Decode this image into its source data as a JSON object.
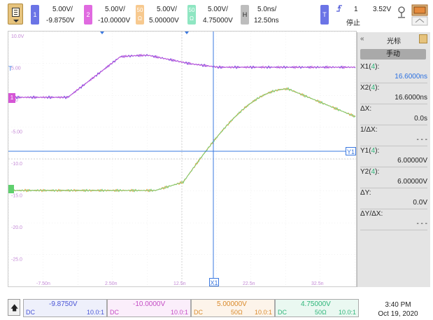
{
  "channels": [
    {
      "badge": "1",
      "scale": "5.00V/",
      "offset": "-9.8750V",
      "color": "#6b74e6"
    },
    {
      "badge": "2",
      "scale": "5.00V/",
      "offset": "-10.0000V",
      "color": "#e06ae0"
    },
    {
      "badge": "50\nΩ",
      "scale": "5.00V/",
      "offset": "5.00000V",
      "color": "#f2a657"
    },
    {
      "badge": "50\nΩ",
      "scale": "5.00V/",
      "offset": "4.75000V",
      "color": "#59d7a2"
    }
  ],
  "timebase": {
    "badge": "H",
    "scale": "5.0ns/",
    "delay": "12.50ns"
  },
  "trigger": {
    "badge": "T",
    "edge_icon": "rising-edge-icon",
    "source": "1",
    "level": "3.52V",
    "status": "停止"
  },
  "waveform": {
    "y_labels": [
      "10.0V",
      "5.00",
      "0.0",
      "-5.00",
      "-10.0",
      "-15.0",
      "-20.0",
      "-25.0"
    ],
    "x_labels": [
      "-7.50n",
      "2.50n",
      "12.5n",
      "22.5n",
      "32.5n"
    ],
    "y1_marker": "Y1",
    "x1_marker": "X1",
    "left_markers": [
      "T",
      "1",
      "2"
    ]
  },
  "cursor_panel": {
    "title": "光标",
    "mode": "手动",
    "rows": [
      {
        "label": "X1(",
        "src": "4",
        "tail": "):",
        "value": "16.6000ns",
        "value_color": "#2a6fe0"
      },
      {
        "label": "X2(",
        "src": "4",
        "tail": "):",
        "value": "16.6000ns",
        "value_color": "#222"
      },
      {
        "label": "ΔX:",
        "src": "",
        "tail": "",
        "value": "0.0s",
        "value_color": "#222"
      },
      {
        "label": "1/ΔX:",
        "src": "",
        "tail": "",
        "value": "- - -",
        "value_color": "#222"
      },
      {
        "label": "Y1(",
        "src": "4",
        "tail": "):",
        "value": "6.00000V",
        "value_color": "#222"
      },
      {
        "label": "Y2(",
        "src": "4",
        "tail": "):",
        "value": "6.00000V",
        "value_color": "#222"
      },
      {
        "label": "ΔY:",
        "src": "",
        "tail": "",
        "value": "0.0V",
        "value_color": "#222"
      },
      {
        "label": "ΔY/ΔX:",
        "src": "",
        "tail": "",
        "value": "- - -",
        "value_color": "#222"
      }
    ]
  },
  "bottom": {
    "cells": [
      {
        "value": "-9.8750V",
        "coupling": "DC",
        "ohm": "",
        "probe": "10.0:1",
        "color": "#4a55d6",
        "bg": "#eef0fb"
      },
      {
        "value": "-10.0000V",
        "coupling": "DC",
        "ohm": "",
        "probe": "10.0:1",
        "color": "#c44cc4",
        "bg": "#fbeefb"
      },
      {
        "value": "5.00000V",
        "coupling": "DC",
        "ohm": "50Ω",
        "probe": "10.0:1",
        "color": "#d98a2b",
        "bg": "#fdf4ea"
      },
      {
        "value": "4.75000V",
        "coupling": "DC",
        "ohm": "50Ω",
        "probe": "10.0:1",
        "color": "#2fb57a",
        "bg": "#eaf8f1"
      }
    ],
    "time": "3:40 PM",
    "date": "Oct 19, 2020"
  },
  "icons": {
    "menu": "menu-icon",
    "run_stop": "run-stop-icon",
    "probe": "probe-icon",
    "scroll_up": "arrow-up-icon"
  }
}
